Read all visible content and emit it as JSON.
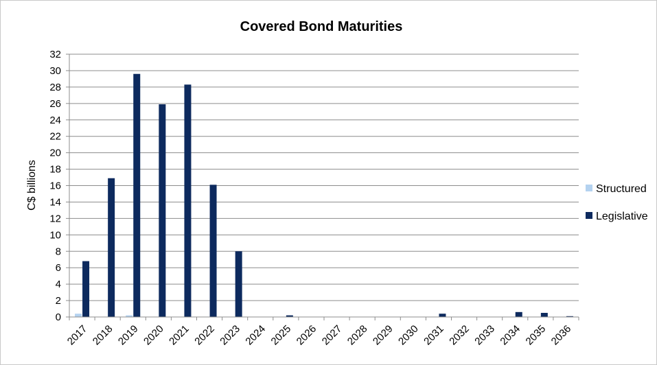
{
  "chart_data": {
    "type": "bar",
    "title": "Covered Bond Maturities",
    "xlabel": "",
    "ylabel": "C$ billions",
    "ylim": [
      0,
      32
    ],
    "yticks": [
      "0",
      "2",
      "4",
      "6",
      "8",
      "10",
      "12",
      "14",
      "16",
      "18",
      "20",
      "22",
      "24",
      "26",
      "28",
      "30",
      "32"
    ],
    "grid": true,
    "legend_position": "right",
    "categories": [
      "2017",
      "2018",
      "2019",
      "2020",
      "2021",
      "2022",
      "2023",
      "2024",
      "2025",
      "2026",
      "2027",
      "2028",
      "2029",
      "2030",
      "2031",
      "2032",
      "2033",
      "2034",
      "2035",
      "2036"
    ],
    "series": [
      {
        "name": "Structured",
        "color": "#b4d2f0",
        "values": [
          0.4,
          0,
          0.2,
          0,
          0,
          0,
          0,
          0,
          0,
          0,
          0,
          0,
          0,
          0,
          0,
          0,
          0,
          0,
          0,
          0
        ]
      },
      {
        "name": "Legislative",
        "color": "#0d2a5e",
        "values": [
          6.8,
          16.9,
          29.6,
          25.9,
          28.3,
          16.1,
          8.0,
          0,
          0.2,
          0,
          0,
          0,
          0,
          0,
          0.4,
          0,
          0,
          0.6,
          0.5,
          0.1
        ]
      }
    ]
  }
}
